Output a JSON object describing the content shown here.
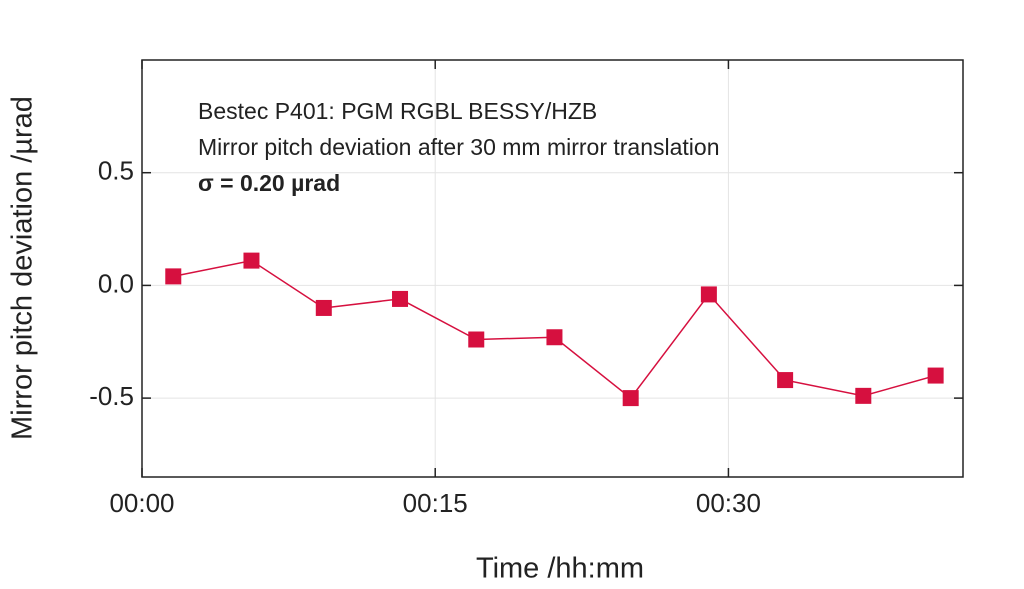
{
  "chart_data": {
    "type": "line",
    "annotations": [
      "Bestec P401: PGM RGBL BESSY/HZB",
      "Mirror pitch deviation after 30 mm mirror translation",
      "σ = 0.20 µrad"
    ],
    "xlabel": "Time /hh:mm",
    "ylabel": "Mirror pitch deviation /µrad",
    "x": [
      1.6,
      5.6,
      9.3,
      13.2,
      17.1,
      21.1,
      25.0,
      29.0,
      32.9,
      36.9,
      40.6
    ],
    "series": [
      {
        "color": "#d6103f",
        "values": [
          0.04,
          0.11,
          -0.1,
          -0.06,
          -0.24,
          -0.23,
          -0.5,
          -0.04,
          -0.42,
          -0.49,
          -0.4
        ]
      }
    ],
    "xlim": [
      0,
      42
    ],
    "xticks": [
      {
        "value": 0,
        "label": "00:00"
      },
      {
        "value": 15,
        "label": "00:15"
      },
      {
        "value": 30,
        "label": "00:30"
      }
    ],
    "ylim": [
      -0.85,
      1.0
    ],
    "yticks": [
      {
        "value": 0.5,
        "label": "0.5"
      },
      {
        "value": 0,
        "label": "0.0"
      },
      {
        "value": -0.5,
        "label": "-0.5"
      }
    ],
    "grid": true
  }
}
